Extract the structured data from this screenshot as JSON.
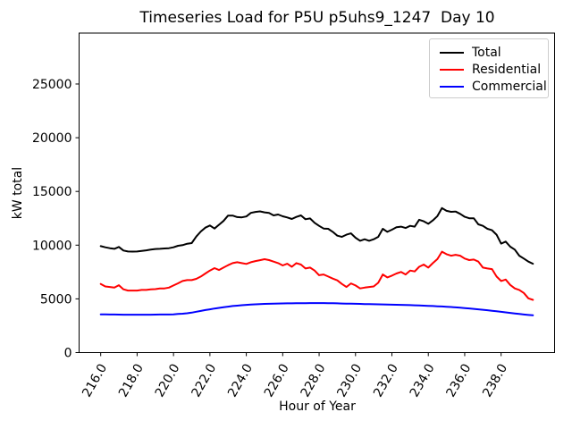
{
  "chart_data": {
    "type": "line",
    "title": "Timeseries Load for P5U p5uhs9_1247  Day 10",
    "xlabel": "Hour of Year",
    "ylabel": "kW total",
    "xlim": [
      214.8125,
      240.9375
    ],
    "ylim": [
      0,
      29740
    ],
    "grid": false,
    "legend_position": "upper right",
    "x_ticks": [
      216,
      218,
      220,
      222,
      224,
      226,
      228,
      230,
      232,
      234,
      236,
      238
    ],
    "x_tick_labels": [
      "216.0",
      "218.0",
      "220.0",
      "222.0",
      "224.0",
      "226.0",
      "228.0",
      "230.0",
      "232.0",
      "234.0",
      "236.0",
      "238.0"
    ],
    "x_tick_rotation_deg": 60,
    "y_ticks": [
      0,
      5000,
      10000,
      15000,
      20000,
      25000
    ],
    "y_tick_labels": [
      "0",
      "5000",
      "10000",
      "15000",
      "20000",
      "25000"
    ],
    "x": [
      216.0,
      216.25,
      216.5,
      216.75,
      217.0,
      217.25,
      217.5,
      217.75,
      218.0,
      218.25,
      218.5,
      218.75,
      219.0,
      219.25,
      219.5,
      219.75,
      220.0,
      220.25,
      220.5,
      220.75,
      221.0,
      221.25,
      221.5,
      221.75,
      222.0,
      222.25,
      222.5,
      222.75,
      223.0,
      223.25,
      223.5,
      223.75,
      224.0,
      224.25,
      224.5,
      224.75,
      225.0,
      225.25,
      225.5,
      225.75,
      226.0,
      226.25,
      226.5,
      226.75,
      227.0,
      227.25,
      227.5,
      227.75,
      228.0,
      228.25,
      228.5,
      228.75,
      229.0,
      229.25,
      229.5,
      229.75,
      230.0,
      230.25,
      230.5,
      230.75,
      231.0,
      231.25,
      231.5,
      231.75,
      232.0,
      232.25,
      232.5,
      232.75,
      233.0,
      233.25,
      233.5,
      233.75,
      234.0,
      234.25,
      234.5,
      234.75,
      235.0,
      235.25,
      235.5,
      235.75,
      236.0,
      236.25,
      236.5,
      236.75,
      237.0,
      237.25,
      237.5,
      237.75,
      238.0,
      238.25,
      238.5,
      238.75,
      239.0,
      239.25,
      239.5,
      239.75
    ],
    "series": [
      {
        "name": "Total",
        "color": "#000000",
        "values": [
          9910,
          9800,
          9720,
          9660,
          9830,
          9500,
          9410,
          9400,
          9410,
          9470,
          9520,
          9580,
          9640,
          9660,
          9690,
          9720,
          9800,
          9940,
          10000,
          10130,
          10190,
          10800,
          11270,
          11630,
          11830,
          11550,
          11900,
          12250,
          12750,
          12750,
          12610,
          12590,
          12670,
          13000,
          13090,
          13140,
          13050,
          13000,
          12770,
          12850,
          12690,
          12580,
          12440,
          12630,
          12770,
          12410,
          12490,
          12080,
          11800,
          11550,
          11520,
          11240,
          10880,
          10770,
          10970,
          11100,
          10690,
          10410,
          10550,
          10410,
          10550,
          10770,
          11520,
          11240,
          11440,
          11660,
          11720,
          11600,
          11800,
          11720,
          12360,
          12220,
          11990,
          12300,
          12700,
          13450,
          13190,
          13100,
          13130,
          12910,
          12640,
          12500,
          12500,
          11940,
          11800,
          11520,
          11390,
          10970,
          10140,
          10330,
          9860,
          9580,
          9020,
          8750,
          8470,
          8270
        ]
      },
      {
        "name": "Residential",
        "color": "#ff0000",
        "values": [
          6390,
          6160,
          6110,
          6050,
          6270,
          5890,
          5770,
          5770,
          5770,
          5830,
          5830,
          5890,
          5910,
          5970,
          5970,
          6050,
          6250,
          6450,
          6660,
          6750,
          6750,
          6860,
          7080,
          7360,
          7640,
          7860,
          7690,
          7910,
          8140,
          8330,
          8410,
          8330,
          8250,
          8410,
          8520,
          8600,
          8690,
          8610,
          8470,
          8330,
          8110,
          8270,
          7990,
          8330,
          8190,
          7830,
          7910,
          7640,
          7200,
          7270,
          7080,
          6890,
          6720,
          6390,
          6110,
          6440,
          6250,
          5970,
          6050,
          6110,
          6160,
          6500,
          7270,
          7000,
          7160,
          7360,
          7500,
          7270,
          7640,
          7550,
          7990,
          8190,
          7910,
          8330,
          8700,
          9390,
          9160,
          9020,
          9100,
          9020,
          8750,
          8610,
          8660,
          8470,
          7910,
          7830,
          7770,
          7080,
          6660,
          6800,
          6300,
          5970,
          5830,
          5550,
          5050,
          4910
        ]
      },
      {
        "name": "Commercial",
        "color": "#0000ff",
        "values": [
          3560,
          3550,
          3545,
          3540,
          3535,
          3530,
          3530,
          3525,
          3525,
          3525,
          3530,
          3530,
          3535,
          3540,
          3540,
          3545,
          3560,
          3590,
          3620,
          3660,
          3720,
          3800,
          3880,
          3960,
          4030,
          4100,
          4160,
          4220,
          4280,
          4330,
          4370,
          4410,
          4440,
          4470,
          4490,
          4510,
          4530,
          4545,
          4555,
          4565,
          4575,
          4580,
          4585,
          4590,
          4595,
          4600,
          4605,
          4608,
          4610,
          4608,
          4600,
          4590,
          4580,
          4570,
          4560,
          4550,
          4540,
          4530,
          4520,
          4510,
          4500,
          4490,
          4480,
          4470,
          4460,
          4450,
          4440,
          4430,
          4415,
          4400,
          4385,
          4370,
          4350,
          4330,
          4310,
          4290,
          4265,
          4240,
          4210,
          4180,
          4145,
          4110,
          4070,
          4030,
          3985,
          3940,
          3890,
          3840,
          3790,
          3740,
          3690,
          3640,
          3590,
          3545,
          3505,
          3470
        ]
      }
    ]
  },
  "legend": {
    "entries": [
      {
        "label": "Total"
      },
      {
        "label": "Residential"
      },
      {
        "label": "Commercial"
      }
    ]
  }
}
